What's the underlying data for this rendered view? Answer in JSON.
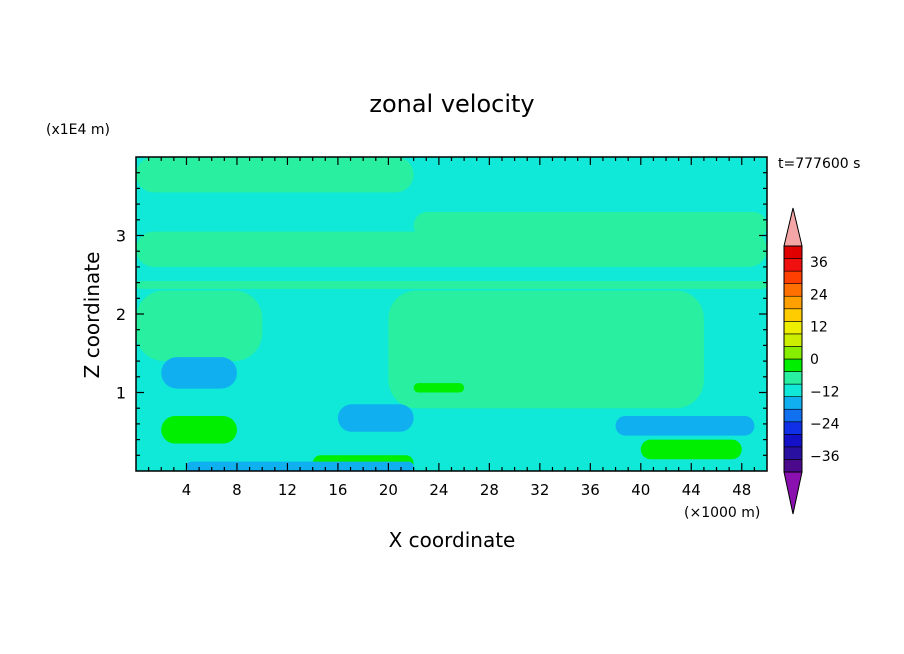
{
  "chart_data": {
    "type": "heatmap",
    "title": "zonal velocity",
    "xlabel": "X coordinate",
    "ylabel": "Z coordinate",
    "x_unit": "(×1000 m)",
    "y_unit": "(x1E4 m)",
    "time_label": "t=777600 s",
    "xlim": [
      0,
      50
    ],
    "ylim": [
      0,
      4
    ],
    "x_ticks": [
      4,
      8,
      12,
      16,
      20,
      24,
      28,
      32,
      36,
      40,
      44,
      48
    ],
    "x_tick_labels": [
      "4",
      "8",
      "12",
      "16",
      "20",
      "24",
      "28",
      "32",
      "36",
      "40",
      "44",
      "48"
    ],
    "y_ticks": [
      1,
      2,
      3
    ],
    "y_tick_labels": [
      "1",
      "2",
      "3"
    ],
    "colorbar": {
      "vmin": -42,
      "vmax": 42,
      "step": 6,
      "tick_values": [
        36,
        24,
        12,
        0,
        -12,
        -24,
        -36
      ],
      "tick_labels": [
        "36",
        "24",
        "12",
        "0",
        "−12",
        "−24",
        "−36"
      ],
      "over_color": "#f4a6a6",
      "under_color": "#8a10b0",
      "colors": [
        "#4b0a8c",
        "#2a10a0",
        "#1410c8",
        "#1030e8",
        "#1070f0",
        "#10b0f0",
        "#10e8d8",
        "#28f0a0",
        "#00ee00",
        "#88ee00",
        "#ccee00",
        "#eeee00",
        "#ffcc00",
        "#ffa000",
        "#ff7000",
        "#ff4000",
        "#f01010",
        "#e00000"
      ]
    },
    "field": {
      "background_level": 0,
      "regions": [
        {
          "value": -3,
          "x": [
            0,
            50
          ],
          "z": [
            0,
            4
          ]
        },
        {
          "value": 3,
          "x": [
            0,
            22
          ],
          "z": [
            3.55,
            4.0
          ]
        },
        {
          "value": 3,
          "x": [
            22,
            50
          ],
          "z": [
            2.95,
            3.3
          ]
        },
        {
          "value": 3,
          "x": [
            0,
            50
          ],
          "z": [
            2.6,
            3.05
          ]
        },
        {
          "value": 3,
          "x": [
            0,
            50
          ],
          "z": [
            2.32,
            2.42
          ]
        },
        {
          "value": 3,
          "x": [
            20,
            45
          ],
          "z": [
            0.8,
            2.3
          ]
        },
        {
          "value": 3,
          "x": [
            0,
            10
          ],
          "z": [
            1.4,
            2.3
          ]
        },
        {
          "value": 9,
          "x": [
            2,
            8
          ],
          "z": [
            0.35,
            0.7
          ]
        },
        {
          "value": 9,
          "x": [
            40,
            48
          ],
          "z": [
            0.15,
            0.4
          ]
        },
        {
          "value": 9,
          "x": [
            14,
            22
          ],
          "z": [
            0.0,
            0.2
          ]
        },
        {
          "value": 9,
          "x": [
            22,
            26
          ],
          "z": [
            1.0,
            1.12
          ]
        },
        {
          "value": -9,
          "x": [
            2,
            8
          ],
          "z": [
            1.05,
            1.45
          ]
        },
        {
          "value": -9,
          "x": [
            16,
            22
          ],
          "z": [
            0.5,
            0.85
          ]
        },
        {
          "value": -9,
          "x": [
            38,
            49
          ],
          "z": [
            0.45,
            0.7
          ]
        },
        {
          "value": -9,
          "x": [
            4,
            22
          ],
          "z": [
            0.0,
            0.12
          ]
        }
      ]
    }
  }
}
